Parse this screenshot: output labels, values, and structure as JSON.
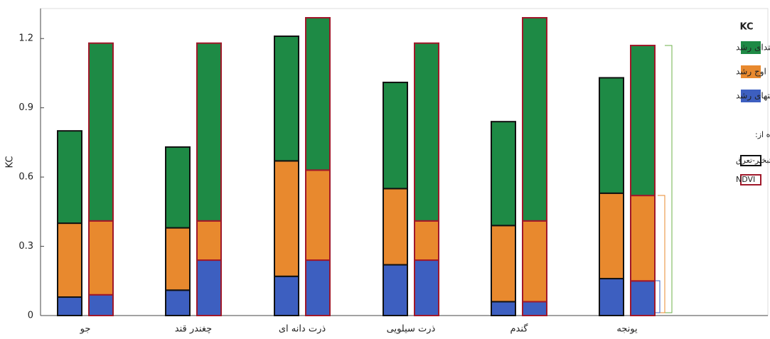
{
  "chart_data": {
    "type": "stacked-bar-pairs",
    "ylabel": "KC",
    "categories": [
      "جو",
      "چغندر قند",
      "ذرت دانه ای",
      "ذرت سیلویی",
      "گندم",
      "یونجه"
    ],
    "ylim": [
      0,
      1.33
    ],
    "yticks": [
      0,
      0.3,
      0.6,
      0.9,
      1.2
    ],
    "legend_title": "KC",
    "stages": [
      {
        "name": "ابتدای رشد",
        "color": "#1e8a45"
      },
      {
        "name": "اوج رشد",
        "color": "#e8892e"
      },
      {
        "name": "انتهای رشد",
        "color": "#3d5fc0"
      }
    ],
    "methods_title": "استفاده از:",
    "methods": [
      {
        "name": "تبخیر-تعرق",
        "edge_color": "#111111",
        "stage_values": [
          [
            0.4,
            0.35,
            0.54,
            0.46,
            0.45,
            0.5
          ],
          [
            0.32,
            0.27,
            0.5,
            0.33,
            0.33,
            0.37
          ],
          [
            0.08,
            0.11,
            0.17,
            0.22,
            0.06,
            0.16
          ]
        ]
      },
      {
        "name": "NDVI",
        "edge_color": "#a0182a",
        "stage_values": [
          [
            0.77,
            0.77,
            0.66,
            0.77,
            0.88,
            0.65
          ],
          [
            0.32,
            0.17,
            0.39,
            0.17,
            0.35,
            0.37
          ],
          [
            0.09,
            0.24,
            0.24,
            0.24,
            0.06,
            0.15
          ]
        ]
      }
    ]
  }
}
